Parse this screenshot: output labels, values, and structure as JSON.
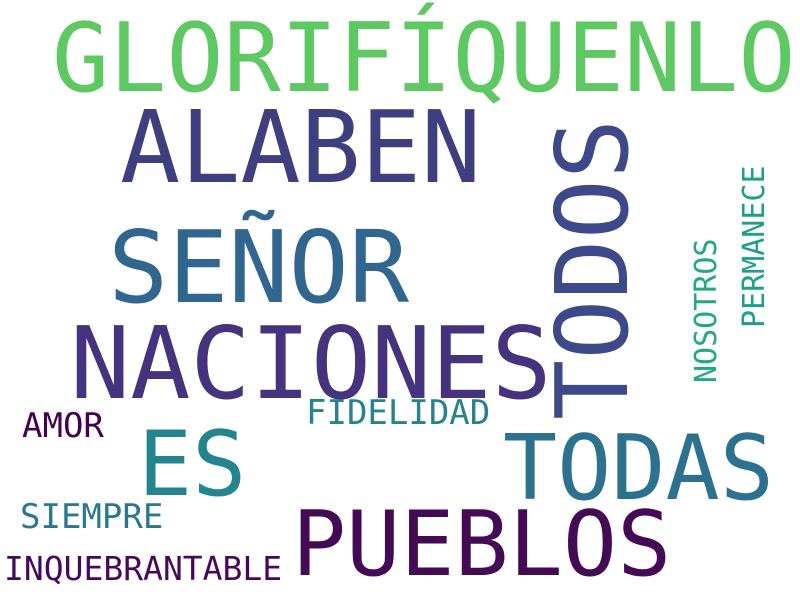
{
  "words": {
    "glorifiquenlo": {
      "text": "GLORIFÍQUENLO",
      "color": "#5ec962"
    },
    "alaben": {
      "text": "ALABEN",
      "color": "#3f3f7f"
    },
    "senor": {
      "text": "SEÑOR",
      "color": "#31668e"
    },
    "naciones": {
      "text": "NACIONES",
      "color": "#46337e"
    },
    "todos": {
      "text": "TODOS",
      "color": "#3e4989"
    },
    "nosotros": {
      "text": "NOSOTROS",
      "color": "#22a884"
    },
    "permanece": {
      "text": "PERMANECE",
      "color": "#1f9e89"
    },
    "fidelidad": {
      "text": "FIDELIDAD",
      "color": "#26828e"
    },
    "amor": {
      "text": "AMOR",
      "color": "#440154"
    },
    "es": {
      "text": "ES",
      "color": "#25858e"
    },
    "todas": {
      "text": "TODAS",
      "color": "#2c718e"
    },
    "siempre": {
      "text": "SIEMPRE",
      "color": "#2a788e"
    },
    "pueblos": {
      "text": "PUEBLOS",
      "color": "#440a54"
    },
    "inquebrantable": {
      "text": "INQUEBRANTABLE",
      "color": "#46085c"
    }
  }
}
